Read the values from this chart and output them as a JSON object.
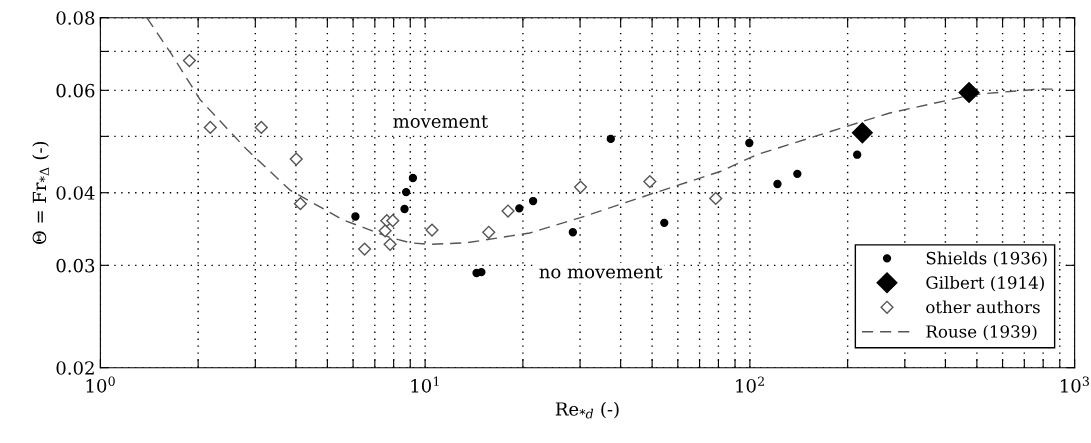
{
  "chart_data": {
    "type": "scatter",
    "xlabel": "Re$_{*d}$ (-)",
    "ylabel": "Θ = Fr$_{*Δ}$ (-)",
    "log": "xy",
    "grid": true,
    "legend": "bottom right",
    "xlim": [
      1,
      1000
    ],
    "ylim": [
      0.02,
      0.08
    ],
    "xticks": [
      {
        "value": 1,
        "label": "10$^{0}$"
      },
      {
        "value": 2,
        "label": null
      },
      {
        "value": 3,
        "label": null
      },
      {
        "value": 4,
        "label": null
      },
      {
        "value": 5,
        "label": null
      },
      {
        "value": 6,
        "label": null
      },
      {
        "value": 7,
        "label": null
      },
      {
        "value": 8,
        "label": null
      },
      {
        "value": 9,
        "label": null
      },
      {
        "value": 10,
        "label": "10$^{1}$"
      },
      {
        "value": 20,
        "label": null
      },
      {
        "value": 30,
        "label": null
      },
      {
        "value": 40,
        "label": null
      },
      {
        "value": 50,
        "label": null
      },
      {
        "value": 60,
        "label": null
      },
      {
        "value": 70,
        "label": null
      },
      {
        "value": 80,
        "label": null
      },
      {
        "value": 90,
        "label": null
      },
      {
        "value": 100,
        "label": "10$^{2}$"
      },
      {
        "value": 200,
        "label": null
      },
      {
        "value": 300,
        "label": null
      },
      {
        "value": 400,
        "label": null
      },
      {
        "value": 500,
        "label": null
      },
      {
        "value": 600,
        "label": null
      },
      {
        "value": 700,
        "label": null
      },
      {
        "value": 800,
        "label": null
      },
      {
        "value": 900,
        "label": null
      },
      {
        "value": 1000,
        "label": "10$^{3}$"
      }
    ],
    "yticks": [
      0.02,
      0.03,
      0.04,
      {
        "value": 0.05,
        "label": null
      },
      0.06,
      {
        "value": 0.07,
        "label": null
      },
      0.08
    ],
    "annotations": [
      "movement",
      "no movement"
    ],
    "series": [
      {
        "name": "Shields (1936)",
        "marker": "circle",
        "color": "#000000",
        "x": [
          6.1,
          8.64,
          8.74,
          9.17,
          14.4,
          14.9,
          19.5,
          21.5,
          28.5,
          37.3,
          54.5,
          99.6,
          121.6,
          140,
          214
        ],
        "values": [
          0.0364,
          0.0375,
          0.0401,
          0.0424,
          0.0291,
          0.0292,
          0.0376,
          0.0387,
          0.0342,
          0.0495,
          0.0355,
          0.0487,
          0.0414,
          0.0431,
          0.0465
        ]
      },
      {
        "name": "Gilbert (1914)",
        "marker": "diamond",
        "color": "#000000",
        "x": [
          222,
          473
        ],
        "values": [
          0.0507,
          0.0595
        ]
      },
      {
        "name": "other authors",
        "marker": "diamond",
        "color": "#555555",
        "x": [
          1.88,
          2.18,
          3.13,
          4.01,
          4.13,
          6.51,
          7.53,
          7.62,
          7.95,
          7.8,
          10.5,
          15.7,
          18.0,
          30.1,
          49.2,
          78.5
        ],
        "values": [
          0.0675,
          0.0518,
          0.0518,
          0.0457,
          0.0383,
          0.032,
          0.0344,
          0.0358,
          0.0358,
          0.0326,
          0.0345,
          0.0342,
          0.0372,
          0.0409,
          0.0418,
          0.0391
        ]
      },
      {
        "name": "Rouse (1939)",
        "type": "line",
        "marker": "none",
        "line_style": "dashed",
        "color": "#555555",
        "x": [
          1.39,
          1.66,
          2.03,
          2.83,
          3.84,
          5.6,
          7.8,
          9.0,
          10.4,
          13.4,
          21.0,
          29.9,
          50.4,
          81,
          105,
          164,
          268,
          487,
          780,
          888
        ],
        "values": [
          0.08,
          0.0691,
          0.0578,
          0.0474,
          0.0404,
          0.0359,
          0.0335,
          0.0328,
          0.0326,
          0.0328,
          0.0341,
          0.0362,
          0.0399,
          0.0435,
          0.0465,
          0.0503,
          0.0548,
          0.059,
          0.0603,
          0.0603
        ]
      }
    ]
  }
}
